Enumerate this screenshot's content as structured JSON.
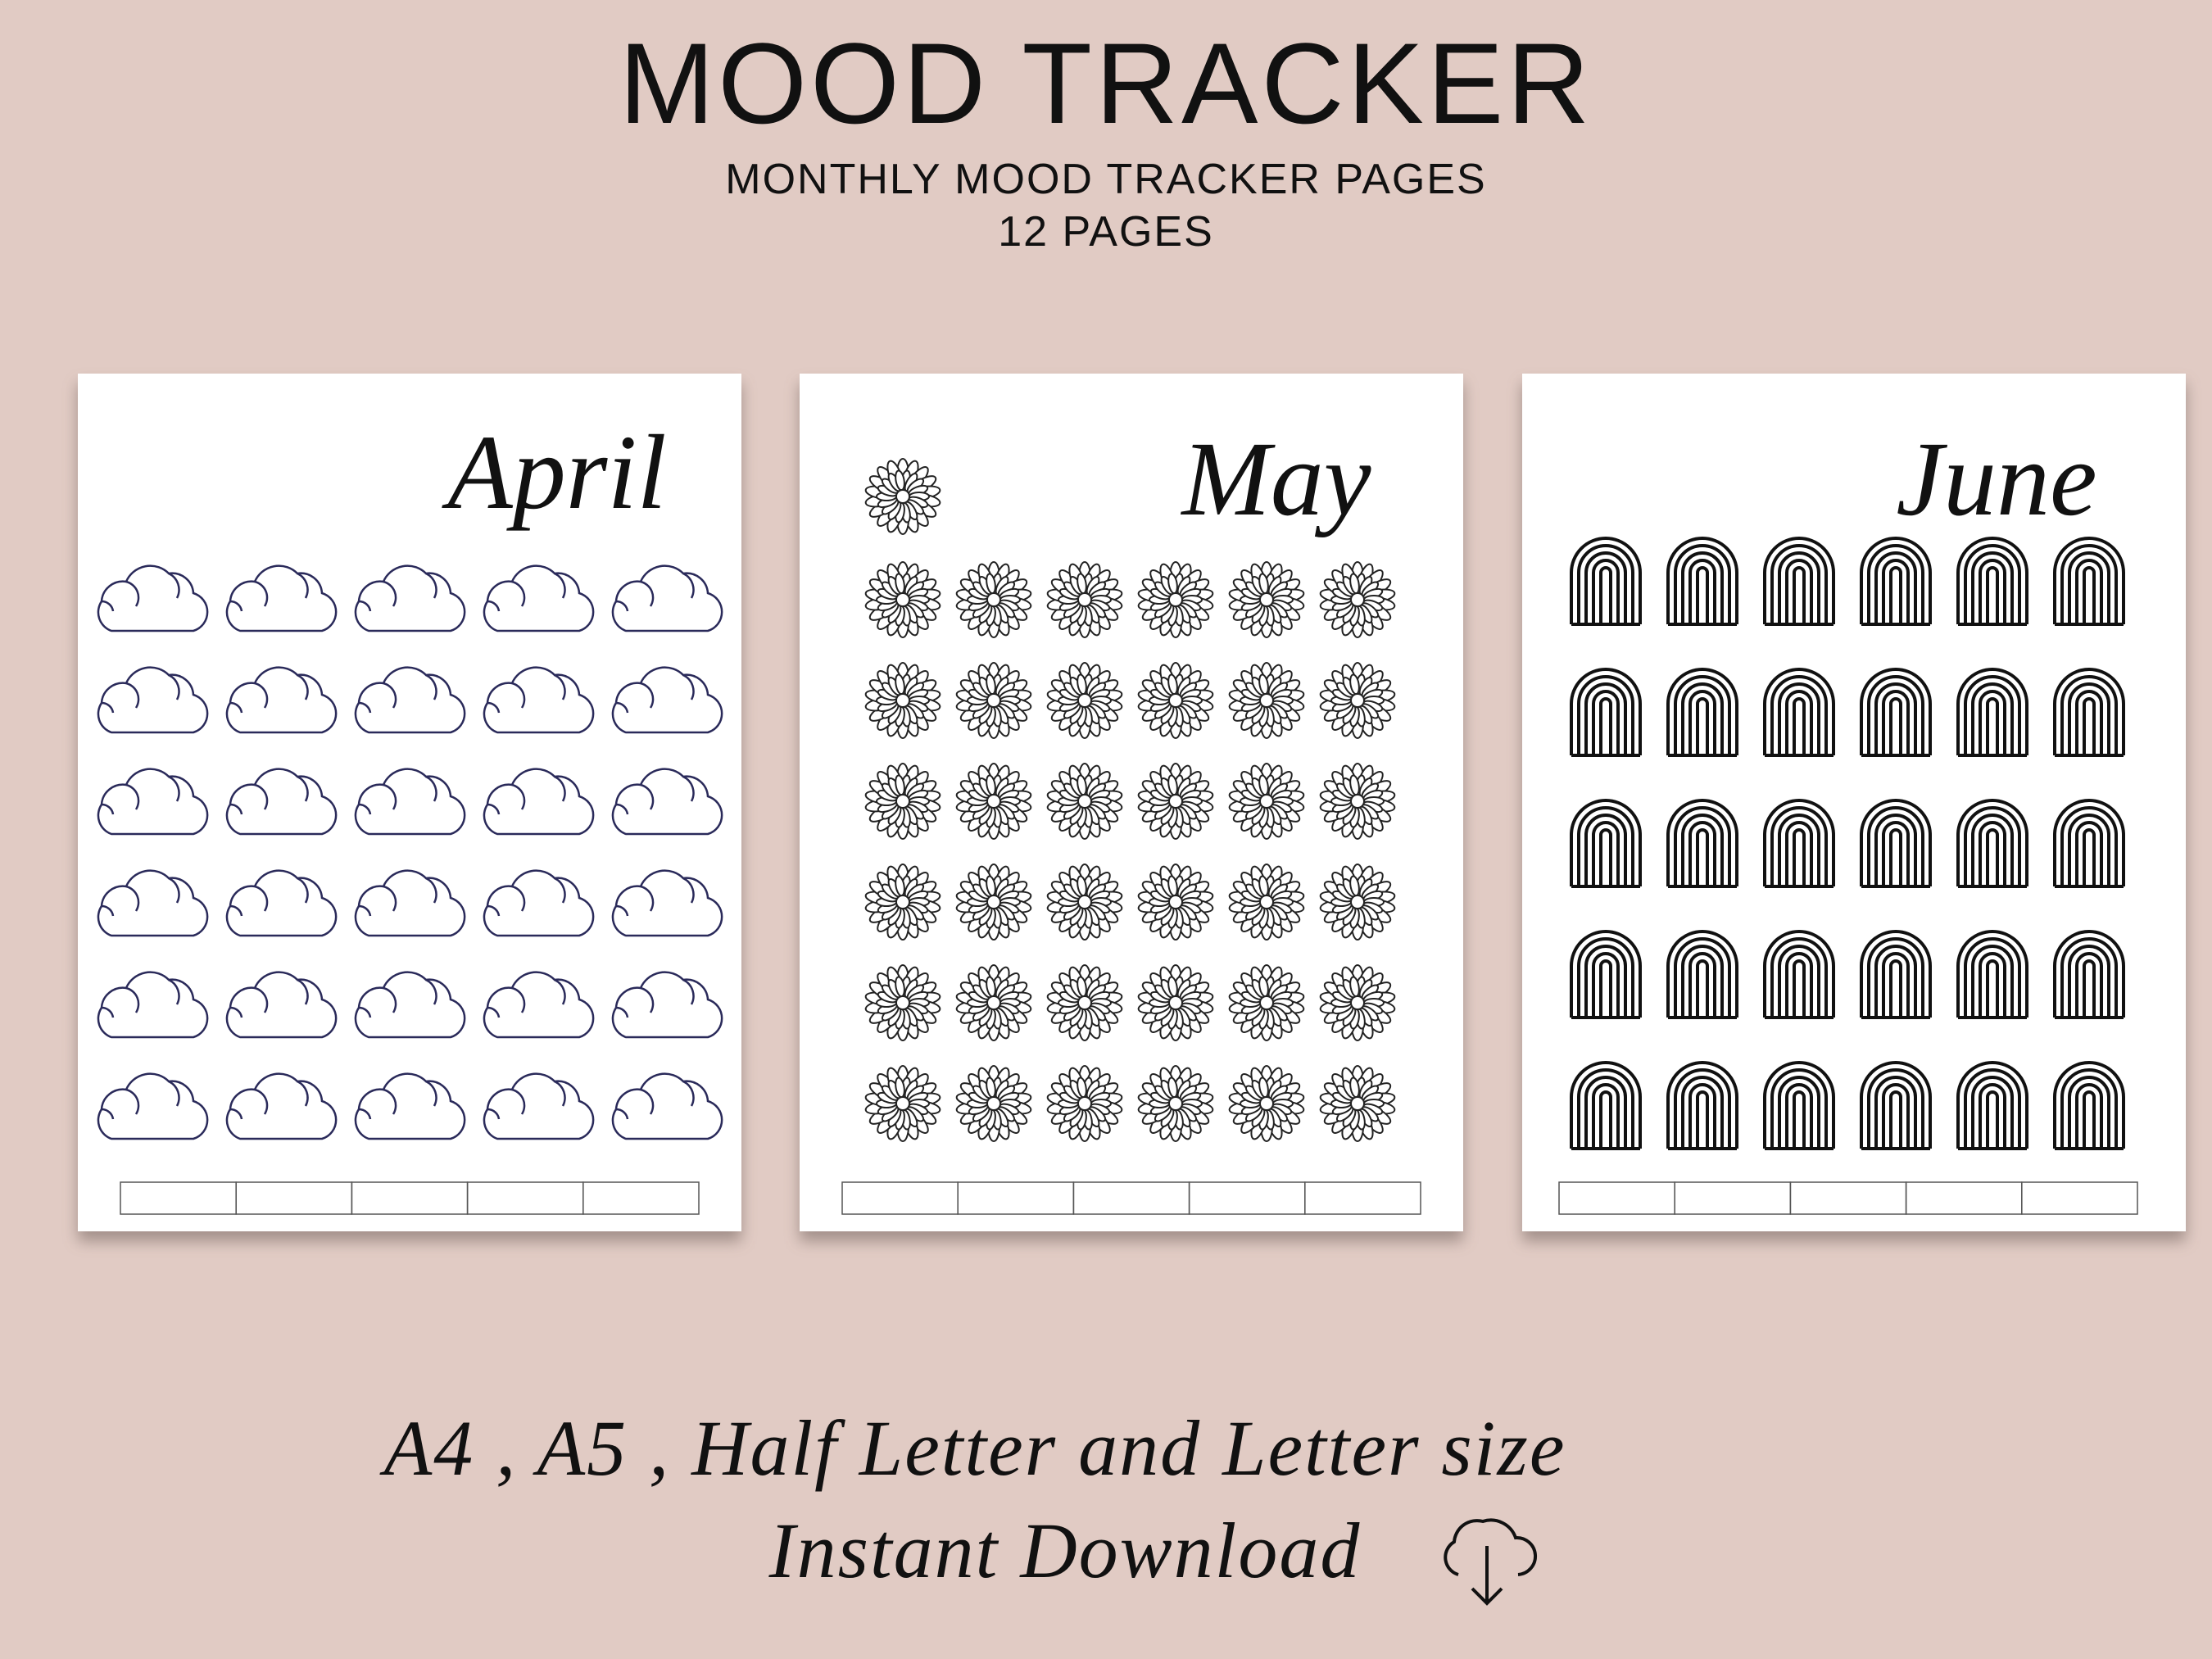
{
  "header": {
    "title": "MOOD TRACKER",
    "subtitle": "MONTHLY MOOD TRACKER PAGES",
    "pages": "12 PAGES"
  },
  "pages": [
    {
      "month": "April"
    },
    {
      "month": "May"
    },
    {
      "month": "June"
    }
  ],
  "footer": {
    "sizes": "A4 , A5 , Half Letter and Letter size",
    "download": "Instant Download"
  }
}
